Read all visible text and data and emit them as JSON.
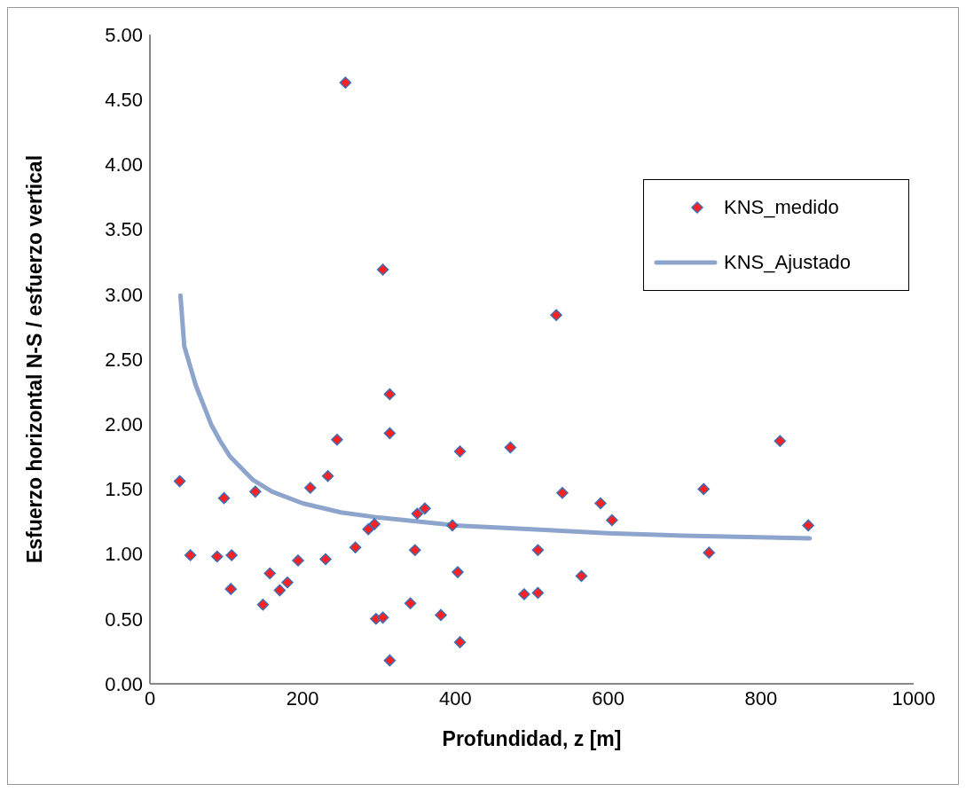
{
  "chart_data": {
    "type": "scatter",
    "xlabel": "Profundidad, z [m]",
    "ylabel": "Esfuerzo horizontal N-S / esfuerzo vertical",
    "xlim": [
      0,
      1000
    ],
    "xticks": [
      0,
      200,
      400,
      600,
      800,
      1000
    ],
    "ylim": [
      0,
      5
    ],
    "yticks": [
      {
        "value": 0,
        "label": "0.00"
      },
      {
        "value": 0.5,
        "label": "0.50"
      },
      {
        "value": 1,
        "label": "1.00"
      },
      {
        "value": 1.5,
        "label": "1.50"
      },
      {
        "value": 2,
        "label": "2.00"
      },
      {
        "value": 2.5,
        "label": "2.50"
      },
      {
        "value": 3,
        "label": "3.00"
      },
      {
        "value": 3.5,
        "label": "3.50"
      },
      {
        "value": 4,
        "label": "4.00"
      },
      {
        "value": 4.5,
        "label": "4.50"
      },
      {
        "value": 5,
        "label": "5.00"
      }
    ],
    "grid": false,
    "legend": "top right",
    "series": [
      {
        "name": "KNS_medido",
        "marker": "diamond",
        "color": "#ff2020",
        "x": [
          39,
          53,
          88,
          107,
          97,
          106,
          138,
          148,
          157,
          170,
          180,
          194,
          210,
          230,
          233,
          245,
          269,
          286,
          294,
          296,
          305,
          314,
          314,
          314,
          341,
          347,
          350,
          256,
          305,
          360,
          396,
          406,
          403,
          381,
          406,
          472,
          540,
          508,
          490,
          508,
          565,
          590,
          605,
          725,
          732,
          825,
          862,
          532
        ],
        "values": [
          1.56,
          0.99,
          0.98,
          0.99,
          1.43,
          0.73,
          1.48,
          0.61,
          0.85,
          0.72,
          0.78,
          0.95,
          1.51,
          0.96,
          1.6,
          1.88,
          1.05,
          1.19,
          1.23,
          0.5,
          0.51,
          2.23,
          1.93,
          0.18,
          0.62,
          1.03,
          1.31,
          4.63,
          3.19,
          1.35,
          1.22,
          1.79,
          0.86,
          0.53,
          0.32,
          1.82,
          1.47,
          1.03,
          0.69,
          0.7,
          0.83,
          1.39,
          1.26,
          1.5,
          1.01,
          1.87,
          1.22,
          2.84
        ]
      },
      {
        "name": "KNS_Ajustado",
        "type": "line",
        "marker": "none",
        "line_style": "solid",
        "color": "#8da5cc",
        "x": [
          40,
          45,
          60,
          80,
          92,
          105,
          135,
          160,
          200,
          250,
          300,
          400,
          500,
          600,
          700,
          864
        ],
        "values": [
          2.99,
          2.6,
          2.3,
          2.0,
          1.87,
          1.75,
          1.57,
          1.48,
          1.39,
          1.32,
          1.28,
          1.22,
          1.19,
          1.16,
          1.14,
          1.12
        ]
      }
    ]
  }
}
